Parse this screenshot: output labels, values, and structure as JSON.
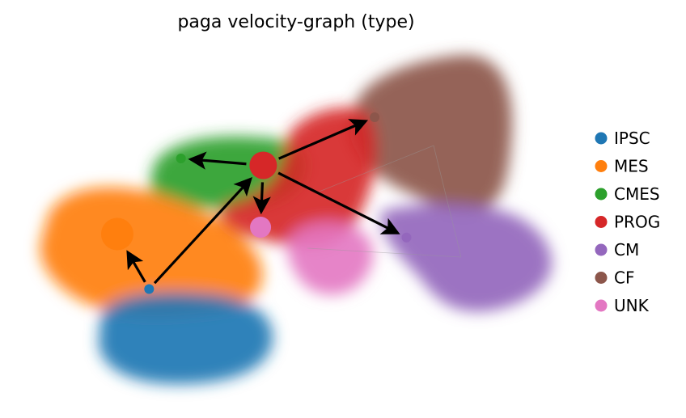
{
  "chart_data": {
    "type": "scatter",
    "title": "paga velocity-graph (type)",
    "xlabel": "",
    "ylabel": "",
    "grid": false,
    "legend_position": "right",
    "legend": [
      {
        "name": "IPSC",
        "color": "#1f77b4"
      },
      {
        "name": "MES",
        "color": "#ff7f0e"
      },
      {
        "name": "CMES",
        "color": "#2ca02c"
      },
      {
        "name": "PROG",
        "color": "#d62728"
      },
      {
        "name": "CM",
        "color": "#9467bd"
      },
      {
        "name": "CF",
        "color": "#8c564b"
      },
      {
        "name": "UNK",
        "color": "#e377c2"
      }
    ],
    "nodes": [
      {
        "name": "IPSC",
        "x": 0.22,
        "y": 0.3,
        "color": "#1f77b4"
      },
      {
        "name": "MES",
        "x": 0.16,
        "y": 0.46,
        "color": "#ff7f0e"
      },
      {
        "name": "CMES",
        "x": 0.28,
        "y": 0.68,
        "color": "#2ca02c"
      },
      {
        "name": "PROG",
        "x": 0.435,
        "y": 0.66,
        "color": "#d62728"
      },
      {
        "name": "CM",
        "x": 0.705,
        "y": 0.45,
        "color": "#9467bd"
      },
      {
        "name": "CF",
        "x": 0.645,
        "y": 0.8,
        "color": "#8c564b"
      },
      {
        "name": "UNK",
        "x": 0.43,
        "y": 0.48,
        "color": "#e377c2"
      }
    ],
    "edges": [
      {
        "from": "IPSC",
        "to": "MES"
      },
      {
        "from": "IPSC",
        "to": "PROG"
      },
      {
        "from": "PROG",
        "to": "CMES"
      },
      {
        "from": "PROG",
        "to": "CF"
      },
      {
        "from": "PROG",
        "to": "CM"
      },
      {
        "from": "PROG",
        "to": "UNK"
      }
    ]
  }
}
